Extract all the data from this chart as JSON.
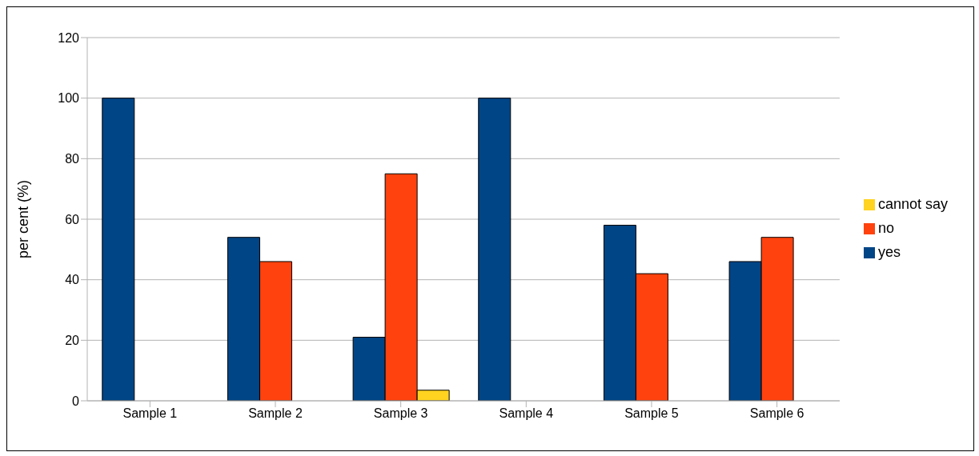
{
  "chart_data": {
    "type": "bar",
    "ylabel": "per cent (%)",
    "categories": [
      "Sample 1",
      "Sample 2",
      "Sample 3",
      "Sample 4",
      "Sample 5",
      "Sample 6"
    ],
    "series": [
      {
        "name": "yes",
        "color": "#004586",
        "values": [
          100,
          54,
          21,
          100,
          58,
          46
        ]
      },
      {
        "name": "no",
        "color": "#ff420e",
        "values": [
          0,
          46,
          75,
          0,
          42,
          54
        ]
      },
      {
        "name": "cannot say",
        "color": "#ffd320",
        "values": [
          0,
          0,
          3.5,
          0,
          0,
          0
        ]
      }
    ],
    "ylim": [
      0,
      120
    ],
    "yticks": [
      0,
      20,
      40,
      60,
      80,
      100,
      120
    ],
    "grid": "y",
    "legend": "right"
  }
}
